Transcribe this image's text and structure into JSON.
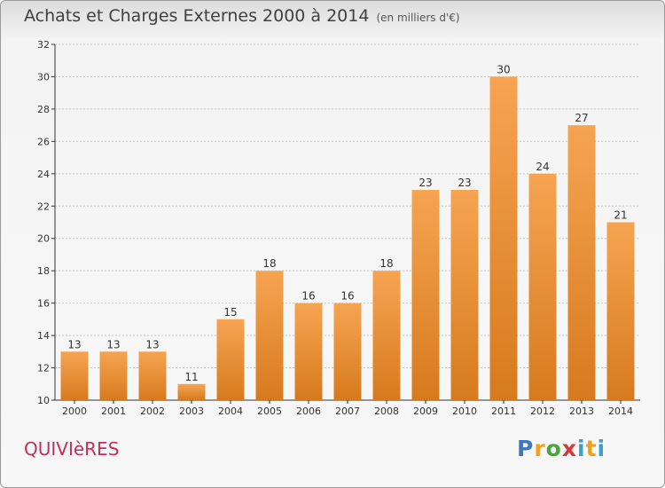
{
  "header": {
    "title": "Achats et Charges Externes 2000 à 2014",
    "subtitle": "(en milliers d'€)"
  },
  "footer": {
    "town": "QUIVIèRES",
    "logo_text": "Proxiti"
  },
  "colors": {
    "bar_top": "#f6a452",
    "bar_bottom": "#d77a1e",
    "axis": "#333333",
    "grid": "#c8c8c8"
  },
  "chart_data": {
    "type": "bar",
    "title": "Achats et Charges Externes 2000 à 2014",
    "subtitle": "(en milliers d'€)",
    "xlabel": "",
    "ylabel": "",
    "categories": [
      "2000",
      "2001",
      "2002",
      "2003",
      "2004",
      "2005",
      "2006",
      "2007",
      "2008",
      "2009",
      "2010",
      "2011",
      "2012",
      "2013",
      "2014"
    ],
    "values": [
      13,
      13,
      13,
      11,
      15,
      18,
      16,
      16,
      18,
      23,
      23,
      30,
      24,
      27,
      21
    ],
    "ylim": [
      10,
      32
    ],
    "yticks": [
      10,
      12,
      14,
      16,
      18,
      20,
      22,
      24,
      26,
      28,
      30,
      32
    ],
    "grid": true
  }
}
